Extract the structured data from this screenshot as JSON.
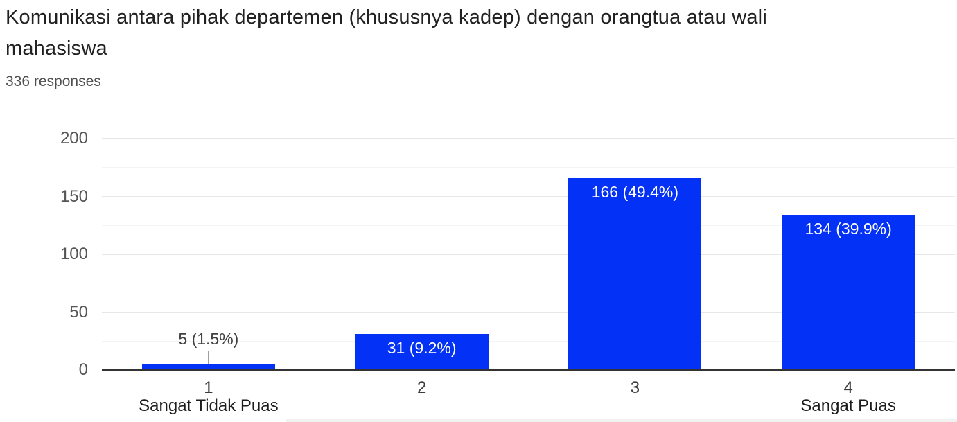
{
  "header": {
    "title": "Komunikasi antara pihak departemen (khususnya kadep) dengan orangtua atau wali mahasiswa",
    "title_lines": [
      "Komunikasi antara pihak departemen (khususnya kadep) dengan orangtua atau wali",
      "mahasiswa"
    ],
    "responses_count": "336 responses"
  },
  "chart_data": {
    "type": "bar",
    "title": "Komunikasi antara pihak departemen (khususnya kadep) dengan orangtua atau wali mahasiswa",
    "categories": [
      "1",
      "2",
      "3",
      "4"
    ],
    "category_edge_labels": [
      "Sangat Tidak Puas",
      "",
      "",
      "Sangat Puas"
    ],
    "values": [
      5,
      31,
      166,
      134
    ],
    "value_labels": [
      "5 (1.5%)",
      "31 (9.2%)",
      "166 (49.4%)",
      "134 (39.9%)"
    ],
    "total_responses": 336,
    "xlabel": "",
    "ylabel": "",
    "ylim": [
      0,
      200
    ],
    "yticks": [
      0,
      50,
      100,
      150,
      200
    ],
    "minor_yticks": [
      25,
      75,
      125,
      175
    ],
    "grid": true,
    "legend": "none",
    "colors": {
      "bar": "#0331f5",
      "axis_line": "#333333",
      "major_gridline": "#e7e7e7",
      "minor_gridline": "#f4f4f4",
      "label_inside_bar": "#ffffff",
      "label_outside_bar": "#404040",
      "callout_stem": "#9e9e9e"
    }
  }
}
